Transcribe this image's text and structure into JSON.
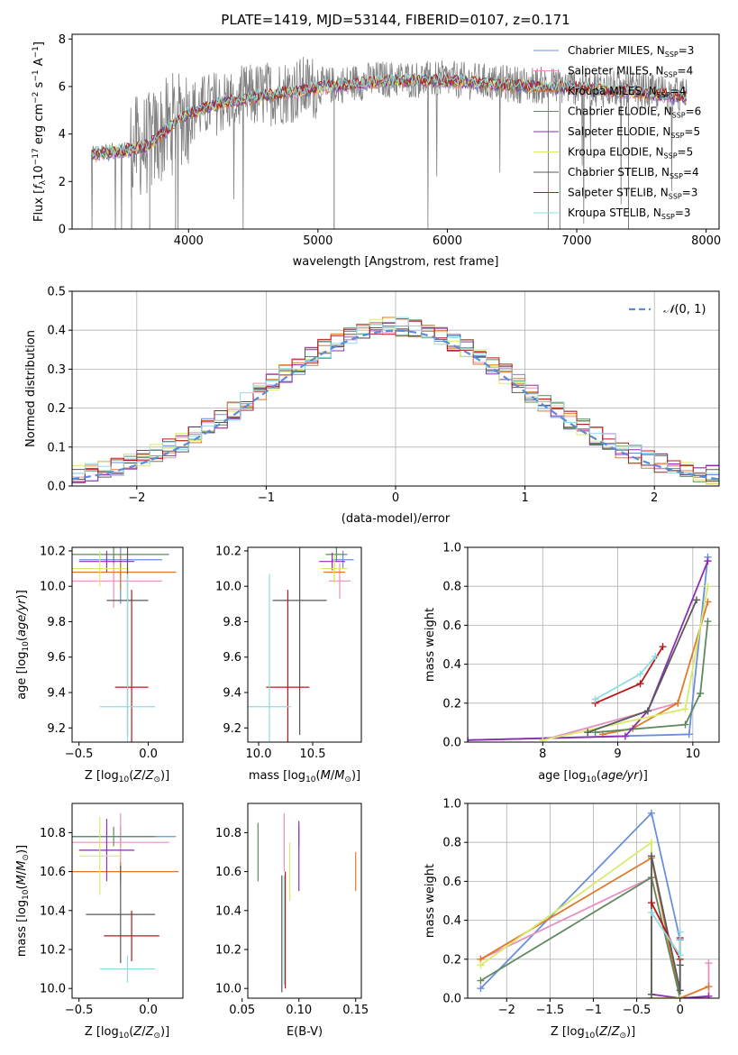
{
  "title": "PLATE=1419, MJD=53144, FIBERID=0107, z=0.171",
  "colors": {
    "Chabrier MILES": "#6a8fdc",
    "Salpeter MILES": "#e88fbf",
    "Kroupa MILES": "#e0782a",
    "Chabrier ELODIE": "#5f8a5f",
    "Salpeter ELODIE": "#8e2fb0",
    "Kroupa ELODIE": "#d8ea6a",
    "Chabrier STELIB": "#585858",
    "Salpeter STELIB": "#b81818",
    "Kroupa STELIB": "#8fdce0",
    "data": "#808080"
  },
  "chart_data": [
    {
      "type": "line",
      "xlabel": "wavelength [Angstrom, rest frame]",
      "ylabel": "Flux [f_λ 10^-17 erg cm^-2 s^-1 A^-1]",
      "xlim": [
        3100,
        8100
      ],
      "ylim": [
        0,
        8.2
      ],
      "xticks": [
        4000,
        5000,
        6000,
        7000,
        8000
      ],
      "yticks": [
        0,
        2,
        4,
        6,
        8
      ],
      "grid": false,
      "legend_position": "right",
      "continuum": {
        "x": [
          3250,
          3550,
          3700,
          3950,
          4200,
          4500,
          5000,
          5500,
          6000,
          6500,
          7000,
          7500,
          7850
        ],
        "y": [
          3.2,
          3.4,
          3.6,
          4.8,
          5.3,
          5.6,
          6.0,
          6.3,
          6.3,
          6.1,
          6.0,
          5.8,
          5.6
        ]
      },
      "series": [
        {
          "name": "Chabrier MILES, N_SSP=3"
        },
        {
          "name": "Salpeter MILES, N_SSP=4"
        },
        {
          "name": "Kroupa MILES, N_SSP=4"
        },
        {
          "name": "Chabrier ELODIE, N_SSP=6"
        },
        {
          "name": "Salpeter ELODIE, N_SSP=5"
        },
        {
          "name": "Kroupa ELODIE, N_SSP=5"
        },
        {
          "name": "Chabrier STELIB, N_SSP=4"
        },
        {
          "name": "Salpeter STELIB, N_SSP=3"
        },
        {
          "name": "Kroupa STELIB, N_SSP=3"
        }
      ]
    },
    {
      "type": "line",
      "xlabel": "(data-model)/error",
      "ylabel": "Normed distribution",
      "xlim": [
        -2.5,
        2.5
      ],
      "ylim": [
        0,
        0.5
      ],
      "xticks": [
        -2,
        -1,
        0,
        1,
        2
      ],
      "yticks": [
        0.0,
        0.1,
        0.2,
        0.3,
        0.4,
        0.5
      ],
      "grid": true,
      "legend_position": "top-right",
      "reference_label": "N(0,1)"
    },
    {
      "type": "scatter",
      "xlabel": "Z [log10(Z/Z⊙)]",
      "ylabel": "age [log10(age/yr)]",
      "xlim": [
        -0.55,
        0.25
      ],
      "ylim": [
        9.12,
        10.22
      ],
      "xticks": [
        -0.5,
        0.0
      ],
      "yticks": [
        9.2,
        9.4,
        9.6,
        9.8,
        10.0,
        10.2
      ],
      "points": [
        {
          "series": "Chabrier MILES",
          "x": -0.2,
          "xerr": 0.3,
          "y": 10.15,
          "yerr": 0.25
        },
        {
          "series": "Salpeter MILES",
          "x": -0.25,
          "xerr": 0.35,
          "y": 10.03,
          "yerr": 0.15
        },
        {
          "series": "Kroupa MILES",
          "x": -0.2,
          "xerr": 0.4,
          "y": 10.08,
          "yerr": 0.1
        },
        {
          "series": "Chabrier ELODIE",
          "x": -0.25,
          "xerr": 0.4,
          "y": 10.18,
          "yerr": 0.05
        },
        {
          "series": "Salpeter ELODIE",
          "x": -0.3,
          "xerr": 0.2,
          "y": 10.14,
          "yerr": 0.06
        },
        {
          "series": "Kroupa ELODIE",
          "x": -0.35,
          "xerr": 0.2,
          "y": 10.1,
          "yerr": 0.1
        },
        {
          "series": "Chabrier STELIB",
          "x": -0.15,
          "xerr": 0.15,
          "y": 9.92,
          "yerr": 0.76
        },
        {
          "series": "Salpeter STELIB",
          "x": -0.12,
          "xerr": 0.12,
          "y": 9.43,
          "yerr": 0.55
        },
        {
          "series": "Kroupa STELIB",
          "x": -0.15,
          "xerr": 0.2,
          "y": 9.32,
          "yerr": 0.75
        }
      ]
    },
    {
      "type": "scatter",
      "xlabel": "mass [log10(M/M⊙)]",
      "ylabel": "",
      "xlim": [
        9.9,
        10.95
      ],
      "ylim": [
        9.12,
        10.22
      ],
      "xticks": [
        10.0,
        10.5
      ],
      "yticks": [
        9.2,
        9.4,
        9.6,
        9.8,
        10.0,
        10.2
      ],
      "points": [
        {
          "series": "Chabrier MILES",
          "x": 10.78,
          "xerr": 0.1,
          "y": 10.15,
          "yerr": 0.05
        },
        {
          "series": "Salpeter MILES",
          "x": 10.75,
          "xerr": 0.1,
          "y": 10.03,
          "yerr": 0.1
        },
        {
          "series": "Kroupa MILES",
          "x": 10.7,
          "xerr": 0.1,
          "y": 10.08,
          "yerr": 0.05
        },
        {
          "series": "Chabrier ELODIE",
          "x": 10.72,
          "xerr": 0.1,
          "y": 10.18,
          "yerr": 0.04
        },
        {
          "series": "Salpeter ELODIE",
          "x": 10.68,
          "xerr": 0.12,
          "y": 10.14,
          "yerr": 0.05
        },
        {
          "series": "Kroupa ELODIE",
          "x": 10.7,
          "xerr": 0.12,
          "y": 10.1,
          "yerr": 0.08
        },
        {
          "series": "Chabrier STELIB",
          "x": 10.38,
          "xerr": 0.25,
          "y": 9.92,
          "yerr": 0.76
        },
        {
          "series": "Salpeter STELIB",
          "x": 10.27,
          "xerr": 0.2,
          "y": 9.43,
          "yerr": 0.55
        },
        {
          "series": "Kroupa STELIB",
          "x": 10.1,
          "xerr": 0.2,
          "y": 9.32,
          "yerr": 0.75
        }
      ]
    },
    {
      "type": "line",
      "xlabel": "age [log10(age/yr)]",
      "ylabel": "mass weight",
      "xlim": [
        7.0,
        10.35
      ],
      "ylim": [
        0,
        1.0
      ],
      "xticks": [
        8,
        9,
        10
      ],
      "yticks": [
        0.0,
        0.2,
        0.4,
        0.6,
        0.8,
        1.0
      ],
      "grid": true,
      "series": [
        {
          "name": "Chabrier MILES",
          "x": [
            7.0,
            9.95,
            10.2
          ],
          "y": [
            0.01,
            0.04,
            0.95
          ]
        },
        {
          "name": "Salpeter MILES",
          "x": [
            8.0,
            9.8
          ],
          "y": [
            0.01,
            0.2
          ]
        },
        {
          "name": "Kroupa MILES",
          "x": [
            8.8,
            9.2,
            9.8,
            10.2
          ],
          "y": [
            0.04,
            0.07,
            0.2,
            0.72
          ]
        },
        {
          "name": "Chabrier ELODIE",
          "x": [
            8.7,
            9.9,
            10.1,
            10.2
          ],
          "y": [
            0.05,
            0.09,
            0.25,
            0.62
          ]
        },
        {
          "name": "Salpeter ELODIE",
          "x": [
            7.0,
            9.1,
            9.4,
            10.2
          ],
          "y": [
            0.01,
            0.03,
            0.16,
            0.93
          ]
        },
        {
          "name": "Kroupa ELODIE",
          "x": [
            8.0,
            9.9,
            10.2
          ],
          "y": [
            0.01,
            0.17,
            0.8
          ]
        },
        {
          "name": "Chabrier STELIB",
          "x": [
            8.6,
            9.4,
            10.05
          ],
          "y": [
            0.05,
            0.16,
            0.73
          ]
        },
        {
          "name": "Salpeter STELIB",
          "x": [
            8.7,
            9.3,
            9.6
          ],
          "y": [
            0.2,
            0.3,
            0.49
          ]
        },
        {
          "name": "Kroupa STELIB",
          "x": [
            8.7,
            9.3,
            9.5
          ],
          "y": [
            0.22,
            0.35,
            0.44
          ]
        }
      ]
    },
    {
      "type": "scatter",
      "xlabel": "Z [log10(Z/Z⊙)]",
      "ylabel": "mass [log10(M/M⊙)]",
      "xlim": [
        -0.55,
        0.25
      ],
      "ylim": [
        9.95,
        10.95
      ],
      "xticks": [
        -0.5,
        0.0
      ],
      "yticks": [
        10.0,
        10.2,
        10.4,
        10.6,
        10.8
      ],
      "points": [
        {
          "series": "Chabrier MILES",
          "x": -0.2,
          "xerr": 0.4,
          "y": 10.78,
          "yerr": 0.05
        },
        {
          "series": "Salpeter MILES",
          "x": -0.2,
          "xerr": 0.35,
          "y": 10.75,
          "yerr": 0.15
        },
        {
          "series": "Kroupa MILES",
          "x": -0.2,
          "xerr": 0.42,
          "y": 10.6,
          "yerr": 0.05
        },
        {
          "series": "Chabrier ELODIE",
          "x": -0.25,
          "xerr": 0.3,
          "y": 10.78,
          "yerr": 0.05
        },
        {
          "series": "Salpeter ELODIE",
          "x": -0.3,
          "xerr": 0.2,
          "y": 10.71,
          "yerr": 0.16
        },
        {
          "series": "Kroupa ELODIE",
          "x": -0.35,
          "xerr": 0.15,
          "y": 10.68,
          "yerr": 0.2
        },
        {
          "series": "Chabrier STELIB",
          "x": -0.2,
          "xerr": 0.25,
          "y": 10.38,
          "yerr": 0.25
        },
        {
          "series": "Salpeter STELIB",
          "x": -0.12,
          "xerr": 0.2,
          "y": 10.27,
          "yerr": 0.13
        },
        {
          "series": "Kroupa STELIB",
          "x": -0.15,
          "xerr": 0.2,
          "y": 10.1,
          "yerr": 0.07
        }
      ]
    },
    {
      "type": "scatter",
      "xlabel": "E(B-V)",
      "ylabel": "",
      "xlim": [
        0.055,
        0.155
      ],
      "ylim": [
        9.95,
        10.95
      ],
      "xticks": [
        0.05,
        0.1,
        0.15
      ],
      "yticks": [
        10.0,
        10.2,
        10.4,
        10.6,
        10.8
      ],
      "points": [
        {
          "series": "Chabrier MILES",
          "x": 0.1,
          "y": 10.78,
          "yerr": 0.05
        },
        {
          "series": "Salpeter MILES",
          "x": 0.087,
          "y": 10.75,
          "yerr": 0.15
        },
        {
          "series": "Kroupa MILES",
          "x": 0.15,
          "y": 10.6,
          "yerr": 0.1
        },
        {
          "series": "Chabrier ELODIE",
          "x": 0.064,
          "y": 10.7,
          "yerr": 0.15
        },
        {
          "series": "Salpeter ELODIE",
          "x": 0.1,
          "y": 10.68,
          "yerr": 0.18
        },
        {
          "series": "Kroupa ELODIE",
          "x": 0.092,
          "y": 10.6,
          "yerr": 0.15
        },
        {
          "series": "Chabrier STELIB",
          "x": 0.085,
          "y": 10.28,
          "yerr": 0.3
        },
        {
          "series": "Salpeter STELIB",
          "x": 0.088,
          "y": 10.3,
          "yerr": 0.3
        },
        {
          "series": "Kroupa STELIB",
          "x": 0.087,
          "y": 10.3,
          "yerr": 0.28
        }
      ]
    },
    {
      "type": "line",
      "xlabel": "Z [log10(Z/Z⊙)]",
      "ylabel": "mass weight",
      "xlim": [
        -2.45,
        0.45
      ],
      "ylim": [
        0,
        1.0
      ],
      "xticks": [
        -2.0,
        -1.5,
        -1.0,
        -0.5,
        0.0
      ],
      "yticks": [
        0.0,
        0.2,
        0.4,
        0.6,
        0.8,
        1.0
      ],
      "grid": true,
      "series": [
        {
          "name": "Chabrier MILES",
          "x": [
            -2.3,
            -0.33,
            0.0,
            0.0
          ],
          "y": [
            0.05,
            0.95,
            0.3,
            0.0
          ]
        },
        {
          "name": "Salpeter MILES",
          "x": [
            -2.3,
            -0.33,
            0.0,
            0.33,
            0.33
          ],
          "y": [
            0.2,
            0.62,
            0.0,
            0.0,
            0.18
          ]
        },
        {
          "name": "Kroupa MILES",
          "x": [
            -2.3,
            -0.33,
            0.0,
            0.33
          ],
          "y": [
            0.2,
            0.72,
            0.0,
            0.06
          ]
        },
        {
          "name": "Chabrier ELODIE",
          "x": [
            -2.3,
            -0.33,
            0.0
          ],
          "y": [
            0.09,
            0.62,
            0.0
          ]
        },
        {
          "name": "Salpeter ELODIE",
          "x": [
            -0.33,
            -0.33,
            0.0,
            0.33
          ],
          "y": [
            0.0,
            0.02,
            0.0,
            0.01
          ]
        },
        {
          "name": "Kroupa ELODIE",
          "x": [
            -2.3,
            -0.33,
            -0.33,
            0.0
          ],
          "y": [
            0.17,
            0.8,
            0.0,
            0.0
          ]
        },
        {
          "name": "Chabrier STELIB",
          "x": [
            -0.33,
            -0.33,
            0.0,
            0.0
          ],
          "y": [
            0.02,
            0.73,
            0.04,
            0.17
          ]
        },
        {
          "name": "Salpeter STELIB",
          "x": [
            -0.33,
            0.0,
            0.0
          ],
          "y": [
            0.49,
            0.2,
            0.31
          ]
        },
        {
          "name": "Kroupa STELIB",
          "x": [
            -0.33,
            0.0,
            0.0
          ],
          "y": [
            0.44,
            0.22,
            0.34
          ]
        }
      ]
    }
  ]
}
